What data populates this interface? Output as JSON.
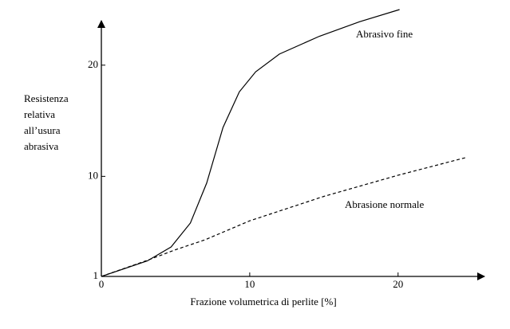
{
  "chart_data": {
    "type": "line",
    "xlabel": "Frazione volumetrica di perlite [%]",
    "ylabel": [
      "Resistenza",
      "relativa",
      "all’usura",
      "abrasiva"
    ],
    "xlim": [
      0,
      25.5
    ],
    "xticks": [
      0,
      10,
      20
    ],
    "ylim": [
      1,
      25
    ],
    "yticks": [
      1,
      10,
      20
    ],
    "series": [
      {
        "name": "Abrasivo fine",
        "color": "#000000",
        "dash": false,
        "x": [
          0,
          3.1,
          4.7,
          6,
          7.1,
          8.2,
          9.3,
          10.4,
          12,
          14.7,
          17.4,
          20.1
        ],
        "values": [
          1,
          2.4,
          3.65,
          5.8,
          9.4,
          14.4,
          17.6,
          19.4,
          21,
          22.6,
          23.9,
          25
        ]
      },
      {
        "name": "Abrasione normale",
        "color": "#000000",
        "dash": true,
        "x": [
          0,
          3,
          5,
          7,
          10,
          15,
          20,
          24.6
        ],
        "values": [
          1,
          2.4,
          3.4,
          4.3,
          6.0,
          8.2,
          10.1,
          11.7
        ]
      }
    ]
  }
}
